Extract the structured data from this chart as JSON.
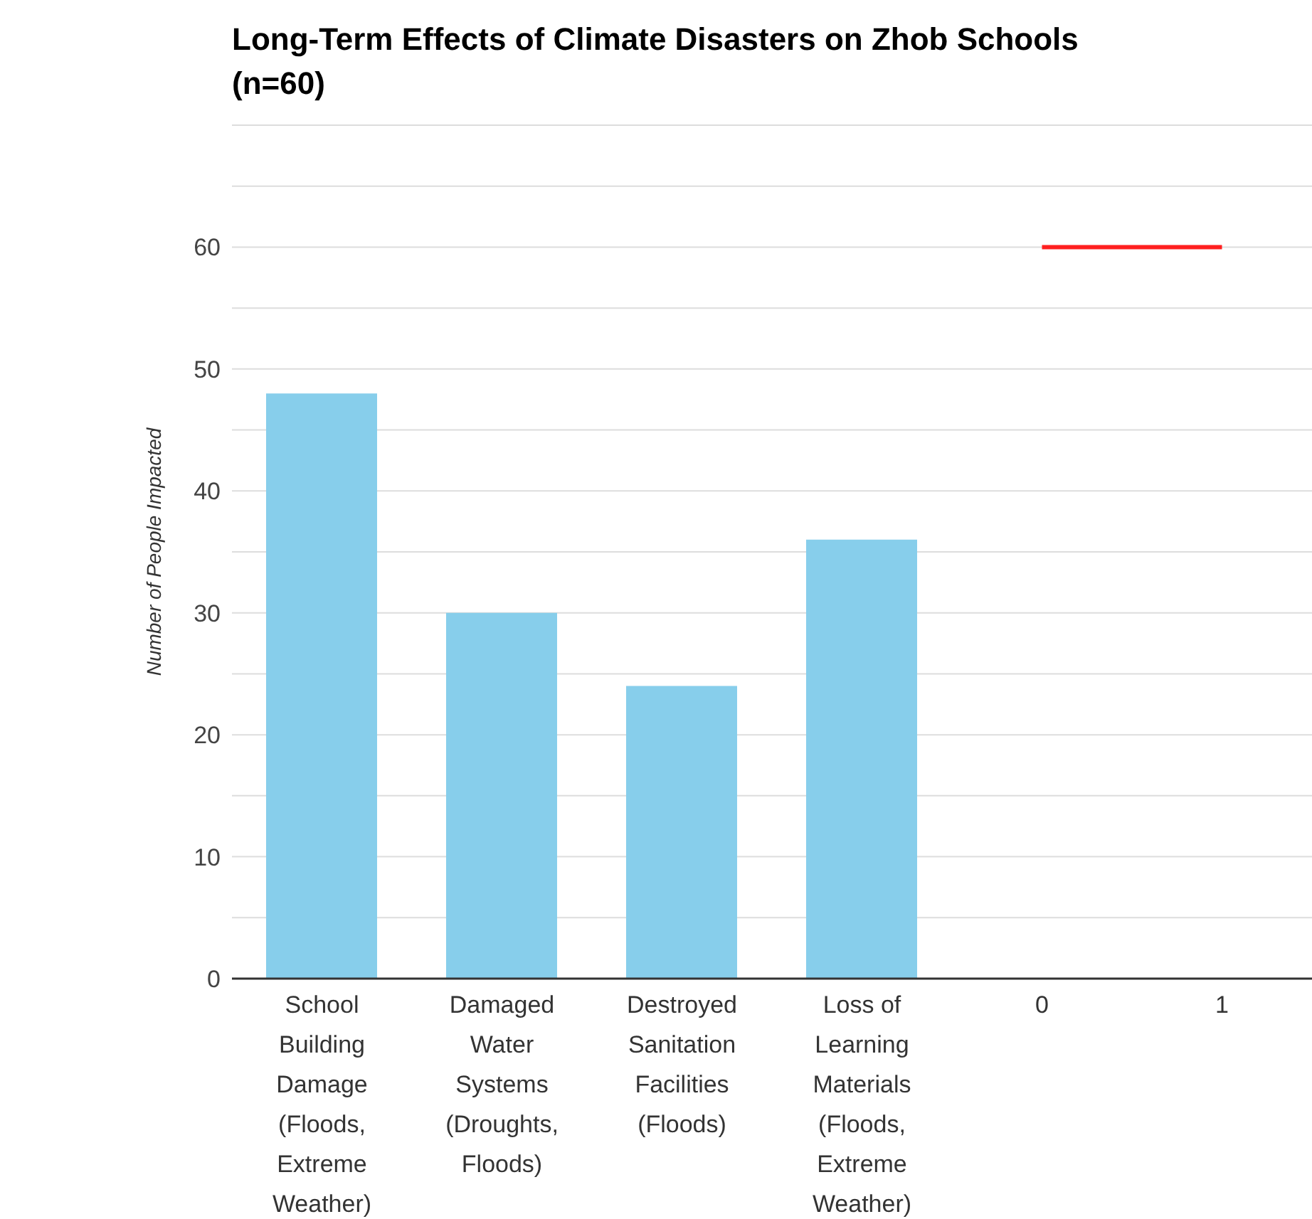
{
  "chart_data": {
    "type": "bar",
    "title": "Long-Term Effects of Climate Disasters on Zhob Schools (n=60)",
    "ylabel": "Number of People Impacted",
    "categories": [
      "School Building Damage (Floods, Extreme Weather)",
      "Damaged Water Systems (Droughts, Floods)",
      "Destroyed Sanitation Facilities (Floods)",
      "Loss of Learning Materials (Floods, Extreme Weather)",
      "0",
      "1"
    ],
    "series": [
      {
        "color": "#87ceeb",
        "values": [
          48,
          30,
          24,
          36,
          null,
          null
        ]
      },
      {
        "type": "line",
        "color": "#ff2020",
        "values": [
          null,
          null,
          null,
          null,
          60,
          60
        ]
      }
    ],
    "ylim": [
      0,
      70
    ],
    "yticks": [
      0,
      {
        "value": 5,
        "label": null
      },
      10,
      {
        "value": 15,
        "label": null
      },
      20,
      {
        "value": 25,
        "label": null
      },
      30,
      {
        "value": 35,
        "label": null
      },
      40,
      {
        "value": 45,
        "label": null
      },
      50,
      {
        "value": 55,
        "label": null
      },
      60,
      {
        "value": 65,
        "label": null
      },
      {
        "value": 70,
        "label": null
      }
    ],
    "grid": "y",
    "legend": false
  }
}
